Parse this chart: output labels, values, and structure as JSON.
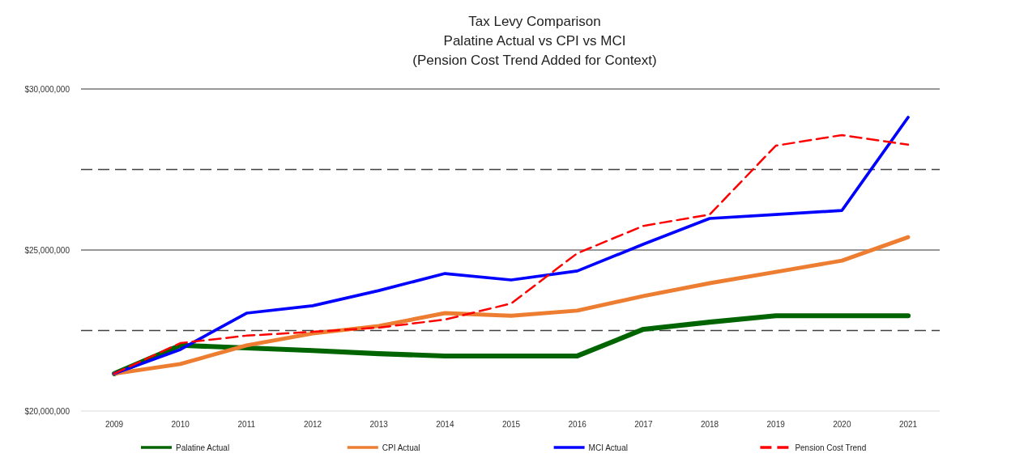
{
  "chart_data": {
    "type": "line",
    "title": "Tax Levy Comparison\nPalatine Actual vs CPI vs MCI\n(Pension Cost Trend Added for Context)",
    "categories": [
      "2009",
      "2010",
      "2011",
      "2012",
      "2013",
      "2014",
      "2015",
      "2016",
      "2017",
      "2018",
      "2019",
      "2020",
      "2021"
    ],
    "series": [
      {
        "name": "Palatine Actual",
        "color": "#006400",
        "values": [
          21160000,
          22040000,
          21960000,
          21880000,
          21780000,
          21710000,
          21710000,
          21710000,
          22540000,
          22760000,
          22960000,
          22960000,
          22960000
        ]
      },
      {
        "name": "CPI Actual",
        "color": "#ed7d31",
        "values": [
          21160000,
          21460000,
          22040000,
          22410000,
          22640000,
          23040000,
          22960000,
          23120000,
          23570000,
          23970000,
          24320000,
          24670000,
          25400000
        ]
      },
      {
        "name": "MCI Actual",
        "color": "#0000ff",
        "values": [
          21160000,
          21910000,
          23040000,
          23270000,
          23740000,
          24270000,
          24070000,
          24350000,
          25180000,
          25980000,
          26100000,
          26230000,
          29120000
        ]
      },
      {
        "name": "Pension Cost Trend",
        "color": "#ff0000",
        "line_style": "dashed",
        "values": [
          21160000,
          22110000,
          22340000,
          22460000,
          22590000,
          22840000,
          23340000,
          24900000,
          25750000,
          26100000,
          28240000,
          28570000,
          28270000
        ]
      }
    ],
    "ylim": [
      20000000,
      30000000
    ],
    "yticks": [
      {
        "value": 20000000,
        "label": "$20,000,000"
      },
      {
        "value": 25000000,
        "label": "$25,000,000"
      },
      {
        "value": 30000000,
        "label": "$30,000,000"
      }
    ],
    "ref_lines": [
      {
        "axis": "y",
        "value": 22500000,
        "color": "#404040",
        "line_style": "dashed"
      },
      {
        "axis": "y",
        "value": 27500000,
        "color": "#404040",
        "line_style": "dashed"
      }
    ],
    "grid": "y",
    "legend": "bottom",
    "line_style": "solid",
    "marker": "none"
  }
}
